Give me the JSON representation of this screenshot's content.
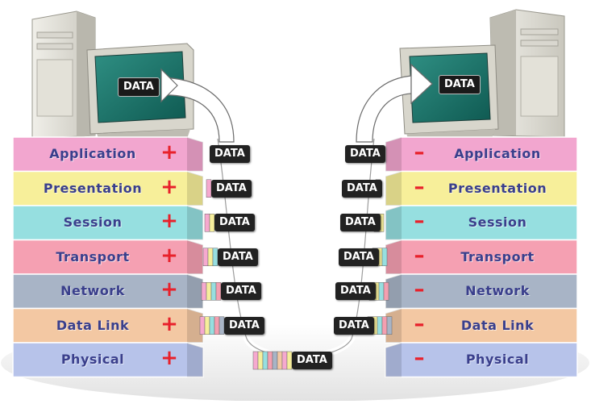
{
  "layers": [
    {
      "name": "Application",
      "color": "#f2a6cf"
    },
    {
      "name": "Presentation",
      "color": "#f7ef9a"
    },
    {
      "name": "Session",
      "color": "#96dfe0"
    },
    {
      "name": "Transport",
      "color": "#f5a0b2"
    },
    {
      "name": "Network",
      "color": "#a8b4c6"
    },
    {
      "name": "Data Link",
      "color": "#f3c8a3"
    },
    {
      "name": "Physical",
      "color": "#b7c3ea"
    }
  ],
  "sender_sign": "+",
  "receiver_sign": "–",
  "data_label": "DATA",
  "header_colors": [
    "#f6a9cf",
    "#f6ee9b",
    "#97dfe0",
    "#f49fb0",
    "#a8b4c6",
    "#f3c8a3"
  ],
  "sign_color": "#e8212b",
  "label_color": "#3a3f8c"
}
